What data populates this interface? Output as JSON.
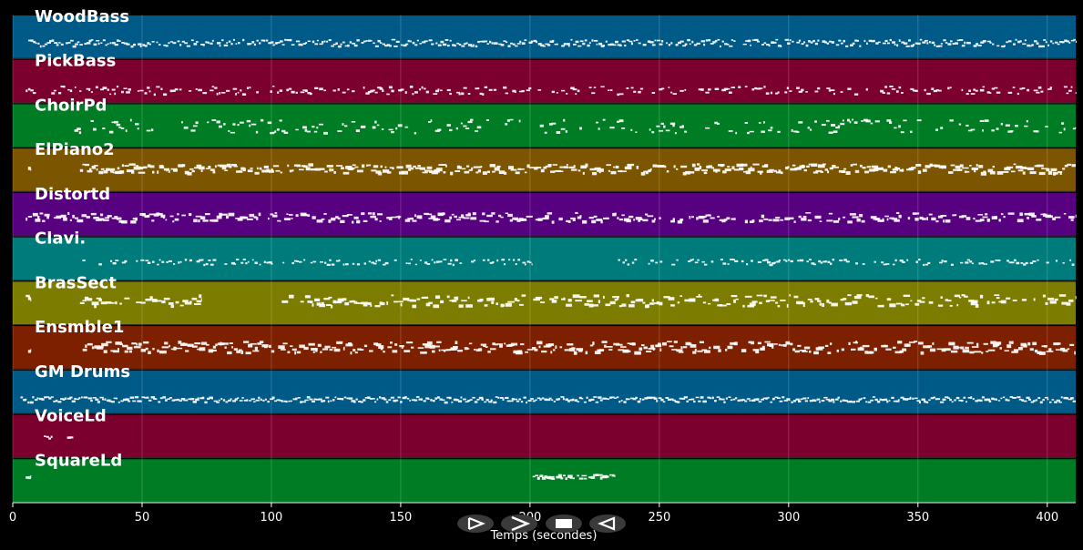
{
  "chart_data": {
    "type": "piano-roll",
    "xlabel": "Temps (secondes)",
    "xlim": [
      0,
      411
    ],
    "x_ticks": [
      0,
      50,
      100,
      150,
      200,
      250,
      300,
      350,
      400
    ],
    "grid": true,
    "tracks": [
      {
        "name": "WoodBass",
        "color": "#005a87",
        "segments": [
          [
            6,
            411
          ]
        ],
        "density": 0.9,
        "thickness": 0.45,
        "band": [
          0.55,
          0.7
        ]
      },
      {
        "name": "PickBass",
        "color": "#7c002e",
        "segments": [
          [
            5,
            411
          ]
        ],
        "density": 0.55,
        "thickness": 0.5,
        "band": [
          0.6,
          0.78
        ]
      },
      {
        "name": "ChoirPd",
        "color": "#007d24",
        "segments": [
          [
            22,
            411
          ]
        ],
        "density": 0.45,
        "thickness": 0.6,
        "band": [
          0.35,
          0.65
        ]
      },
      {
        "name": "ElPiano2",
        "color": "#7b5500",
        "segments": [
          [
            5,
            7
          ],
          [
            26,
            411
          ]
        ],
        "density": 0.85,
        "thickness": 1.0,
        "band": [
          0.35,
          0.55
        ]
      },
      {
        "name": "Distortd",
        "color": "#570080",
        "segments": [
          [
            5,
            411
          ]
        ],
        "density": 0.7,
        "thickness": 0.9,
        "band": [
          0.45,
          0.65
        ]
      },
      {
        "name": "Clavi.",
        "color": "#007b7b",
        "segments": [
          [
            26,
            201
          ],
          [
            234,
            411
          ]
        ],
        "density": 0.6,
        "thickness": 0.4,
        "band": [
          0.5,
          0.62
        ]
      },
      {
        "name": "BrasSect",
        "color": "#7c7c00",
        "segments": [
          [
            5,
            7
          ],
          [
            26,
            73
          ],
          [
            104,
            411
          ]
        ],
        "density": 0.6,
        "thickness": 1.0,
        "band": [
          0.3,
          0.55
        ]
      },
      {
        "name": "Ensmble1",
        "color": "#7c2000",
        "segments": [
          [
            5,
            7
          ],
          [
            27,
            411
          ]
        ],
        "density": 0.8,
        "thickness": 1.0,
        "band": [
          0.35,
          0.6
        ]
      },
      {
        "name": "GM Drums",
        "color": "#005a87",
        "segments": [
          [
            3,
            411
          ]
        ],
        "density": 1.0,
        "thickness": 0.45,
        "band": [
          0.6,
          0.72
        ]
      },
      {
        "name": "VoiceLd",
        "color": "#7c002e",
        "segments": [
          [
            12,
            25
          ]
        ],
        "density": 0.35,
        "thickness": 0.45,
        "band": [
          0.45,
          0.55
        ]
      },
      {
        "name": "SquareLd",
        "color": "#007d24",
        "segments": [
          [
            5,
            7
          ],
          [
            201,
            233
          ]
        ],
        "density": 0.9,
        "thickness": 0.8,
        "band": [
          0.35,
          0.45
        ]
      }
    ]
  },
  "controls": [
    {
      "name": "play-button",
      "glyph": "play"
    },
    {
      "name": "forward-button",
      "glyph": "forward"
    },
    {
      "name": "stop-button",
      "glyph": "stop"
    },
    {
      "name": "rewind-button",
      "glyph": "rewind"
    }
  ]
}
